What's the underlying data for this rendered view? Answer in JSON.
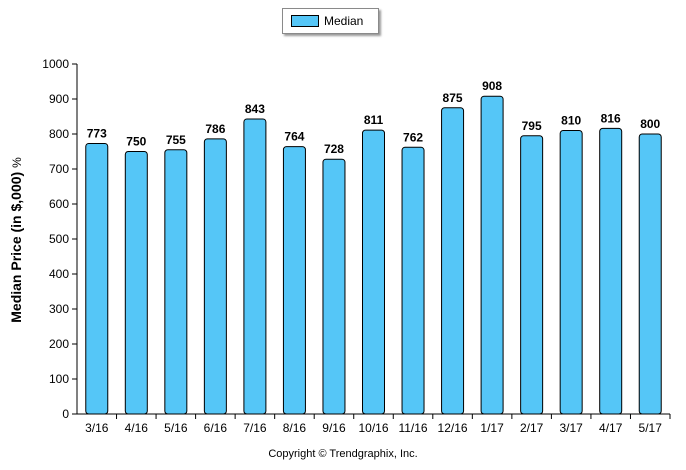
{
  "chart_data": {
    "type": "bar",
    "categories": [
      "3/16",
      "4/16",
      "5/16",
      "6/16",
      "7/16",
      "8/16",
      "9/16",
      "10/16",
      "11/16",
      "12/16",
      "1/17",
      "2/17",
      "3/17",
      "4/17",
      "5/17"
    ],
    "series": [
      {
        "name": "Median",
        "values": [
          773,
          750,
          755,
          786,
          843,
          764,
          728,
          811,
          762,
          875,
          908,
          795,
          810,
          816,
          800
        ],
        "color": "#55c6f7"
      }
    ],
    "ylabel": "Median Price (in $,000)",
    "ylabel_unit": "%",
    "ylim": [
      0,
      1000
    ],
    "yticks": [
      0,
      100,
      200,
      300,
      400,
      500,
      600,
      700,
      800,
      900,
      1000
    ],
    "grid": false,
    "legend_position": "top-center",
    "data_labels": true
  },
  "footer": {
    "copyright": "Copyright © Trendgraphix, Inc."
  }
}
